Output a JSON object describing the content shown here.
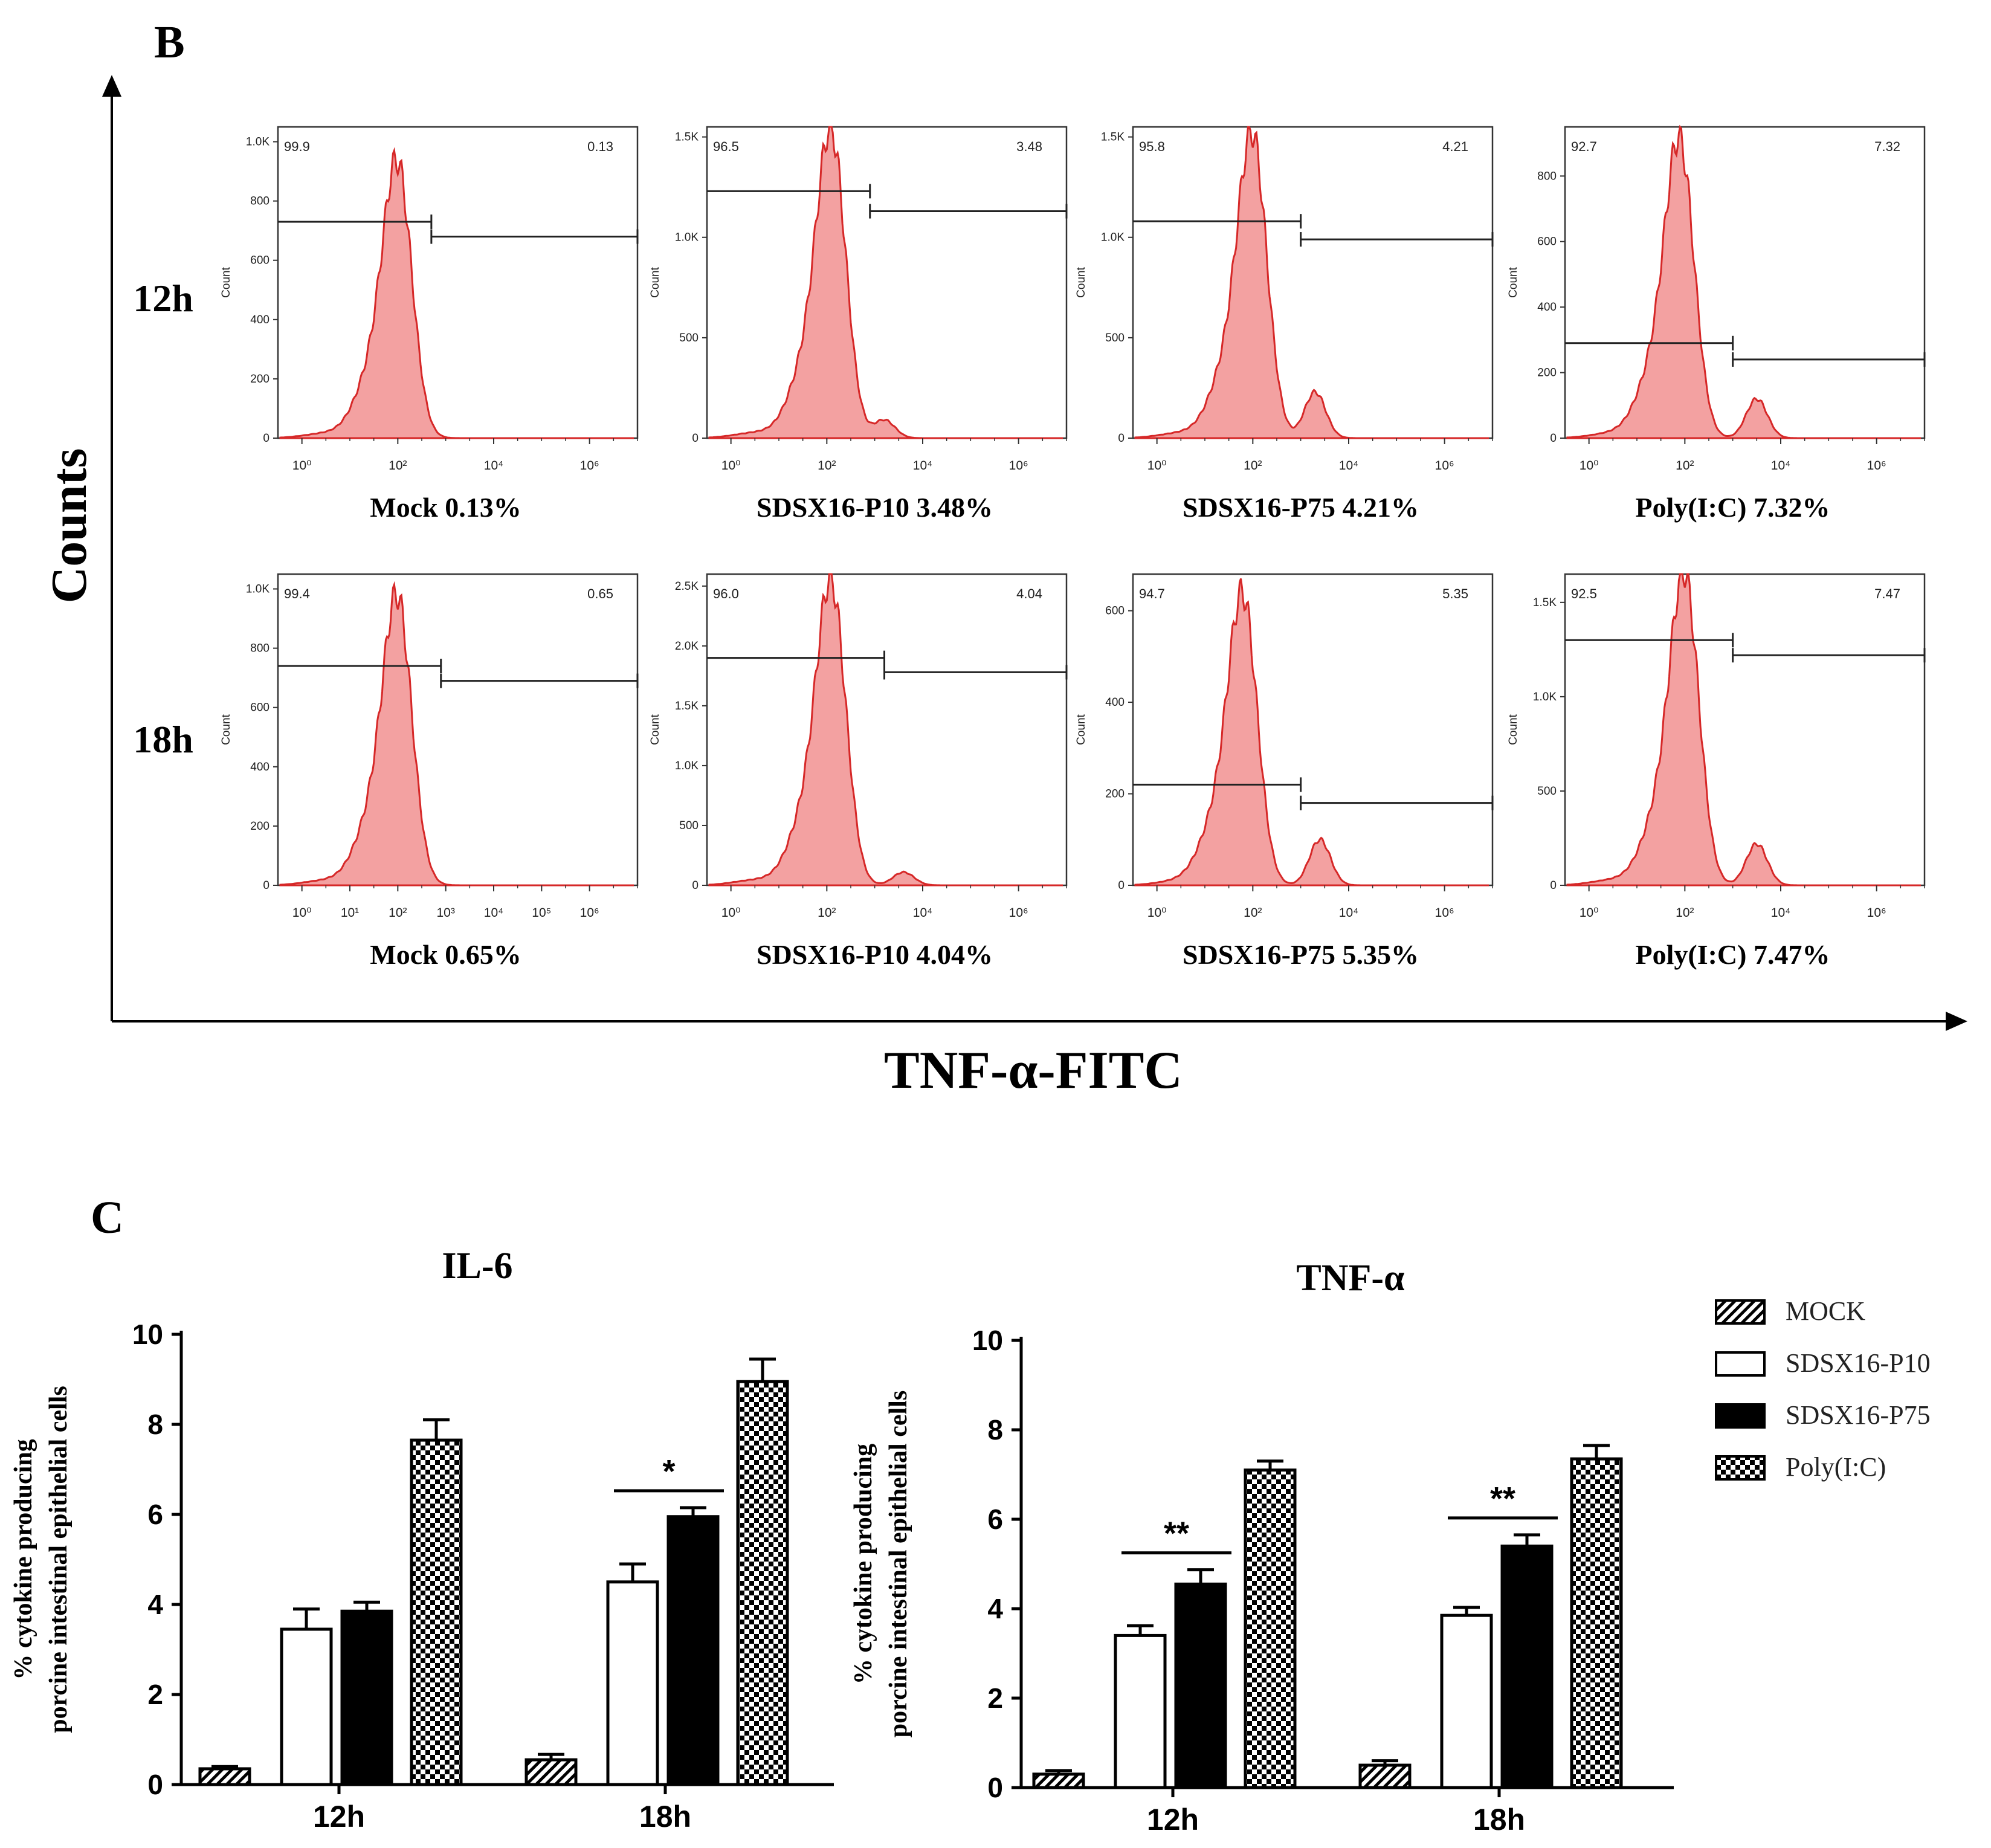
{
  "panel_b": {
    "label": "B",
    "y_axis_label": "Counts",
    "x_axis_label": "TNF-α-FITC",
    "row_labels": [
      "12h",
      "18h"
    ],
    "histograms": [
      {
        "row": 0,
        "col": 0,
        "group": "Mock",
        "percent": "0.13%",
        "gate_left": "99.9",
        "gate_right": "0.13",
        "y_ticks": [
          "0",
          "200",
          "400",
          "600",
          "800",
          "1.0K"
        ],
        "y_max": 1050,
        "y_tick_values": [
          0,
          200,
          400,
          600,
          800,
          1000
        ],
        "peak": 880,
        "peak_log": 2.0,
        "second_peak": 0,
        "second_log": 4.0,
        "gate_split_log": 2.7,
        "gate_left_y": 730,
        "gate_right_y": 680,
        "x_ticks": [
          "10⁰",
          "10²",
          "10⁴",
          "10⁶"
        ]
      },
      {
        "row": 0,
        "col": 1,
        "group": "SDSX16-P10",
        "percent": "3.48%",
        "gate_left": "96.5",
        "gate_right": "3.48",
        "y_ticks": [
          "0",
          "500",
          "1.0K",
          "1.5K"
        ],
        "y_max": 1550,
        "y_tick_values": [
          0,
          500,
          1000,
          1500
        ],
        "peak": 1450,
        "peak_log": 2.1,
        "second_peak": 90,
        "second_log": 3.2,
        "gate_split_log": 2.9,
        "gate_left_y": 1230,
        "gate_right_y": 1130,
        "x_ticks": [
          "10⁰",
          "10²",
          "10⁴",
          "10⁶"
        ]
      },
      {
        "row": 0,
        "col": 2,
        "group": "SDSX16-P75",
        "percent": "4.21%",
        "gate_left": "95.8",
        "gate_right": "4.21",
        "y_ticks": [
          "0",
          "500",
          "1.0K",
          "1.5K"
        ],
        "y_max": 1550,
        "y_tick_values": [
          0,
          500,
          1000,
          1500
        ],
        "peak": 1430,
        "peak_log": 2.0,
        "second_peak": 230,
        "second_log": 3.3,
        "gate_split_log": 3.0,
        "gate_left_y": 1080,
        "gate_right_y": 990,
        "x_ticks": [
          "10⁰",
          "10²",
          "10⁴",
          "10⁶"
        ]
      },
      {
        "row": 0,
        "col": 3,
        "group": "Poly(I:C)",
        "percent": "7.32%",
        "gate_left": "92.7",
        "gate_right": "7.32",
        "y_ticks": [
          "0",
          "200",
          "400",
          "600",
          "800"
        ],
        "y_max": 950,
        "y_tick_values": [
          0,
          200,
          400,
          600,
          800
        ],
        "peak": 860,
        "peak_log": 1.9,
        "second_peak": 120,
        "second_log": 3.5,
        "gate_split_log": 3.0,
        "gate_left_y": 290,
        "gate_right_y": 240,
        "x_ticks": [
          "10⁰",
          "10²",
          "10⁴",
          "10⁶"
        ]
      },
      {
        "row": 1,
        "col": 0,
        "group": "Mock",
        "percent": "0.65%",
        "gate_left": "99.4",
        "gate_right": "0.65",
        "y_ticks": [
          "0",
          "200",
          "400",
          "600",
          "800",
          "1.0K"
        ],
        "y_max": 1050,
        "y_tick_values": [
          0,
          200,
          400,
          600,
          800,
          1000
        ],
        "peak": 920,
        "peak_log": 2.0,
        "second_peak": 0,
        "second_log": 4.0,
        "gate_split_log": 2.9,
        "gate_left_y": 740,
        "gate_right_y": 690,
        "x_ticks": [
          "10⁰",
          "10¹",
          "10²",
          "10³",
          "10⁴",
          "10⁵",
          "10⁶"
        ]
      },
      {
        "row": 1,
        "col": 1,
        "group": "SDSX16-P10",
        "percent": "4.04%",
        "gate_left": "96.0",
        "gate_right": "4.04",
        "y_ticks": [
          "0",
          "500",
          "1.0K",
          "1.5K",
          "2.0K",
          "2.5K"
        ],
        "y_max": 2600,
        "y_tick_values": [
          0,
          500,
          1000,
          1500,
          2000,
          2500
        ],
        "peak": 2400,
        "peak_log": 2.1,
        "second_peak": 110,
        "second_log": 3.6,
        "gate_split_log": 3.2,
        "gate_left_y": 1900,
        "gate_right_y": 1780,
        "x_ticks": [
          "10⁰",
          "10²",
          "10⁴",
          "10⁶"
        ]
      },
      {
        "row": 1,
        "col": 2,
        "group": "SDSX16-P75",
        "percent": "5.35%",
        "gate_left": "94.7",
        "gate_right": "5.35",
        "y_ticks": [
          "0",
          "200",
          "400",
          "600"
        ],
        "y_max": 680,
        "y_tick_values": [
          0,
          200,
          400,
          600
        ],
        "peak": 600,
        "peak_log": 1.8,
        "second_peak": 100,
        "second_log": 3.4,
        "gate_split_log": 3.0,
        "gate_left_y": 220,
        "gate_right_y": 180,
        "x_ticks": [
          "10⁰",
          "10²",
          "10⁴",
          "10⁶"
        ]
      },
      {
        "row": 1,
        "col": 3,
        "group": "Poly(I:C)",
        "percent": "7.47%",
        "gate_left": "92.5",
        "gate_right": "7.47",
        "y_ticks": [
          "0",
          "500",
          "1.0K",
          "1.5K"
        ],
        "y_max": 1650,
        "y_tick_values": [
          0,
          500,
          1000,
          1500
        ],
        "peak": 1560,
        "peak_log": 2.0,
        "second_peak": 220,
        "second_log": 3.5,
        "gate_split_log": 3.0,
        "gate_left_y": 1300,
        "gate_right_y": 1220,
        "x_ticks": [
          "10⁰",
          "10²",
          "10⁴",
          "10⁶"
        ]
      }
    ]
  },
  "panel_c": {
    "label": "C",
    "legend": [
      "MOCK",
      "SDSX16-P10",
      "SDSX16-P75",
      "Poly(I:C)"
    ]
  },
  "chart_data": [
    {
      "type": "bar",
      "title": "IL-6",
      "xlabel": "",
      "ylabel": "% cytokine producing porcine intestinal epithelial cells",
      "ylabel_lines": [
        "% cytokine  producing",
        "porcine intestinal epithelial cells"
      ],
      "categories": [
        "12h",
        "18h"
      ],
      "series": [
        {
          "name": "MOCK",
          "values": [
            0.35,
            0.55
          ],
          "errors": [
            0.05,
            0.12
          ]
        },
        {
          "name": "SDSX16-P10",
          "values": [
            3.45,
            4.5
          ],
          "errors": [
            0.45,
            0.4
          ]
        },
        {
          "name": "SDSX16-P75",
          "values": [
            3.85,
            5.95
          ],
          "errors": [
            0.2,
            0.2
          ]
        },
        {
          "name": "Poly(I:C)",
          "values": [
            7.65,
            8.95
          ],
          "errors": [
            0.45,
            0.5
          ]
        }
      ],
      "ylim": [
        0,
        10
      ],
      "yticks": [
        "0",
        "2",
        "4",
        "6",
        "8",
        "10"
      ],
      "significance": [
        {
          "category": "18h",
          "label": "*"
        }
      ]
    },
    {
      "type": "bar",
      "title": "TNF-α",
      "xlabel": "",
      "ylabel": "% cytokine producing porcine intestinal epithelial cells",
      "ylabel_lines": [
        "% cytokine  producing",
        "porcine intestinal epithelial cells"
      ],
      "categories": [
        "12h",
        "18h"
      ],
      "series": [
        {
          "name": "MOCK",
          "values": [
            0.3,
            0.5
          ],
          "errors": [
            0.08,
            0.1
          ]
        },
        {
          "name": "SDSX16-P10",
          "values": [
            3.4,
            3.85
          ],
          "errors": [
            0.22,
            0.18
          ]
        },
        {
          "name": "SDSX16-P75",
          "values": [
            4.55,
            5.4
          ],
          "errors": [
            0.32,
            0.25
          ]
        },
        {
          "name": "Poly(I:C)",
          "values": [
            7.1,
            7.35
          ],
          "errors": [
            0.2,
            0.3
          ]
        }
      ],
      "ylim": [
        0,
        10
      ],
      "yticks": [
        "0",
        "2",
        "4",
        "6",
        "8",
        "10"
      ],
      "significance": [
        {
          "category": "12h",
          "label": "**"
        },
        {
          "category": "18h",
          "label": "**"
        }
      ]
    }
  ]
}
